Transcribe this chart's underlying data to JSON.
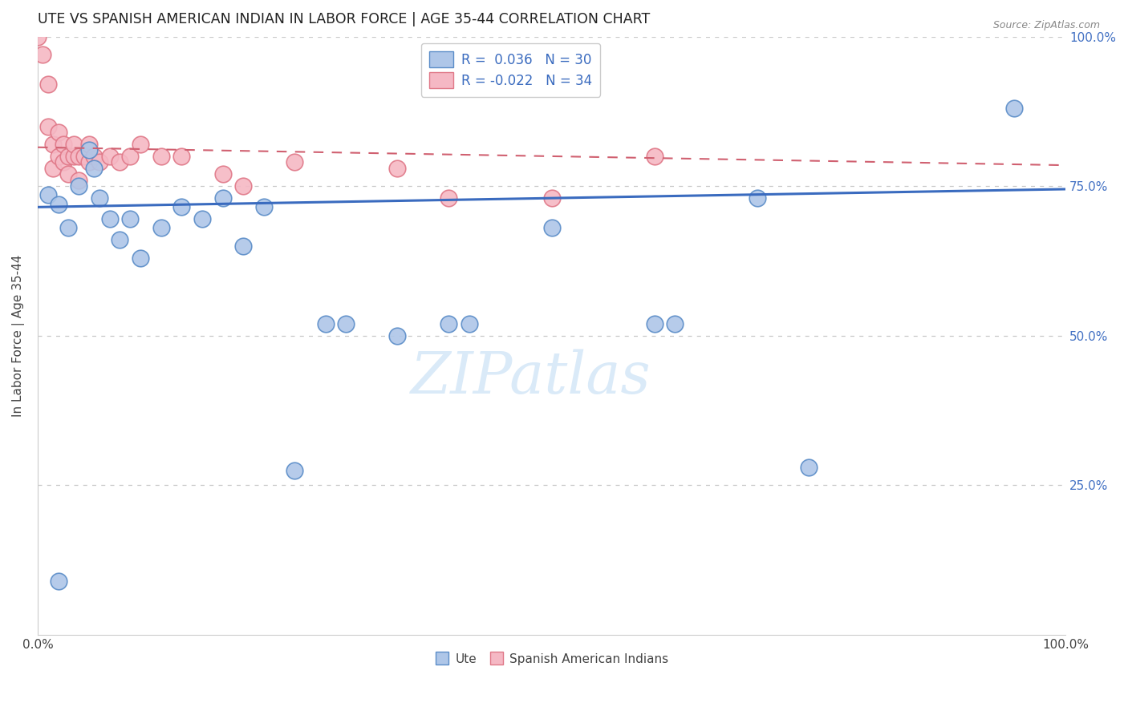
{
  "title": "UTE VS SPANISH AMERICAN INDIAN IN LABOR FORCE | AGE 35-44 CORRELATION CHART",
  "source": "Source: ZipAtlas.com",
  "ylabel": "In Labor Force | Age 35-44",
  "xlim": [
    0,
    1.0
  ],
  "ylim": [
    0,
    1.0
  ],
  "background_color": "#ffffff",
  "grid_color": "#c8c8c8",
  "ute_fill": "#aec6e8",
  "ute_edge": "#5b8dc8",
  "sai_fill": "#f5b8c4",
  "sai_edge": "#e07888",
  "ute_line_color": "#3a6bbf",
  "sai_line_color": "#d06070",
  "watermark_color": "#daeaf8",
  "ute_x": [
    0.01,
    0.02,
    0.03,
    0.04,
    0.05,
    0.055,
    0.06,
    0.07,
    0.08,
    0.09,
    0.1,
    0.12,
    0.14,
    0.16,
    0.18,
    0.2,
    0.22,
    0.25,
    0.28,
    0.3,
    0.35,
    0.4,
    0.42,
    0.5,
    0.6,
    0.62,
    0.7,
    0.75,
    0.95,
    0.02
  ],
  "ute_y": [
    0.735,
    0.72,
    0.68,
    0.75,
    0.81,
    0.78,
    0.73,
    0.695,
    0.66,
    0.695,
    0.63,
    0.68,
    0.715,
    0.695,
    0.73,
    0.65,
    0.715,
    0.275,
    0.52,
    0.52,
    0.5,
    0.52,
    0.52,
    0.68,
    0.52,
    0.52,
    0.73,
    0.28,
    0.88,
    0.09
  ],
  "sai_x": [
    0.0,
    0.005,
    0.01,
    0.01,
    0.015,
    0.015,
    0.02,
    0.02,
    0.025,
    0.025,
    0.03,
    0.03,
    0.035,
    0.035,
    0.04,
    0.04,
    0.045,
    0.05,
    0.05,
    0.055,
    0.06,
    0.07,
    0.08,
    0.09,
    0.1,
    0.12,
    0.14,
    0.18,
    0.2,
    0.25,
    0.35,
    0.4,
    0.5,
    0.6
  ],
  "sai_y": [
    1.0,
    0.97,
    0.92,
    0.85,
    0.82,
    0.78,
    0.8,
    0.84,
    0.82,
    0.79,
    0.8,
    0.77,
    0.8,
    0.82,
    0.8,
    0.76,
    0.8,
    0.82,
    0.79,
    0.8,
    0.79,
    0.8,
    0.79,
    0.8,
    0.82,
    0.8,
    0.8,
    0.77,
    0.75,
    0.79,
    0.78,
    0.73,
    0.73,
    0.8
  ],
  "ute_R": 0.036,
  "ute_N": 30,
  "sai_R": -0.022,
  "sai_N": 34
}
